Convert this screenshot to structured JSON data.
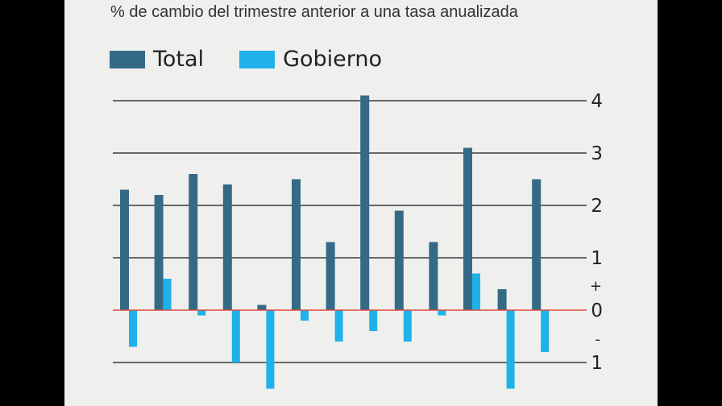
{
  "subtitle": "% de cambio del trimestre anterior a una tasa anualizada",
  "colors": {
    "total": "#356a86",
    "gobierno": "#1fb1ea",
    "zero_line": "#e0483e",
    "grid": "#3a3a3a",
    "background": "#efefed"
  },
  "chart_data": {
    "type": "bar",
    "subtitle": "% de cambio del trimestre anterior a una tasa anualizada",
    "categories": [
      "",
      "",
      "",
      "",
      "",
      "",
      "",
      "",
      "",
      "",
      "",
      "",
      ""
    ],
    "series": [
      {
        "name": "Total",
        "color": "#356a86",
        "values": [
          2.3,
          2.2,
          2.6,
          2.4,
          0.1,
          2.5,
          1.3,
          4.1,
          1.9,
          1.3,
          3.1,
          0.4,
          2.5
        ]
      },
      {
        "name": "Gobierno",
        "color": "#1fb1ea",
        "values": [
          -0.7,
          0.6,
          -0.1,
          -1.0,
          -1.5,
          -0.2,
          -0.6,
          -0.4,
          -0.6,
          -0.1,
          0.7,
          -1.5,
          -0.8
        ]
      }
    ],
    "yticks": [
      {
        "value": 4,
        "label": "4"
      },
      {
        "value": 3,
        "label": "3"
      },
      {
        "value": 2,
        "label": "2"
      },
      {
        "value": 1,
        "label": "1"
      },
      {
        "value": 0,
        "label": "0"
      },
      {
        "value": -1,
        "label": "1"
      }
    ],
    "sign_labels": {
      "plus": "+",
      "minus": "-"
    },
    "ylim": [
      -1.5,
      4.1
    ],
    "grid": true,
    "legend_position": "top-left"
  }
}
